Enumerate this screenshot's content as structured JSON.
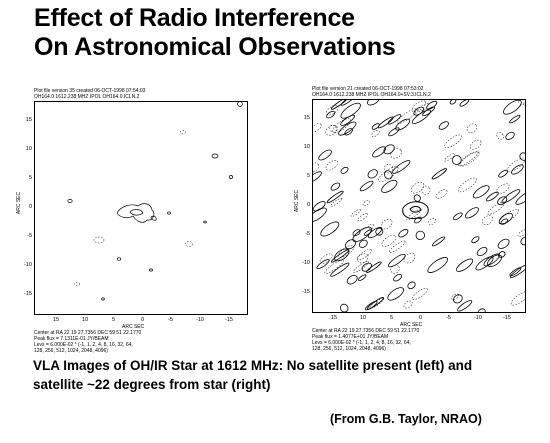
{
  "title": {
    "line1": "Effect of Radio Interference",
    "line2": "On Astronomical Observations"
  },
  "left_plot": {
    "header1": "Plot file version 35 created 06-OCT-1998 07:54:03",
    "header2": "OH164.0 1612.238 MHZ IPOL OH164.0.ICLN.2",
    "y_label": "ARC SEC",
    "x_label": "ARC SEC",
    "y_ticks": [
      "15",
      "10",
      "5",
      "0",
      "-5",
      "-10",
      "-15"
    ],
    "x_ticks": [
      "15",
      "10",
      "5",
      "0",
      "-5",
      "-10",
      "-15"
    ],
    "footer1": "Center at RA 22 19 27.7356  DEC 59 51 22.1770",
    "footer2": "Peak flux = 7.1311E-01 JY/BEAM",
    "footer3": "Levs = 6.000E-02 * (-1, 1, 2, 4, 8, 16, 32, 64,",
    "footer4": "128, 256, 512, 1024, 2048, 4096)"
  },
  "right_plot": {
    "header1": "Plot file version 21 created 06-OCT-1998 07:53:02",
    "header2": "OH164.0 1612.238 MHZ IPOL OH164.0+SV.3.ICLN.2",
    "y_label": "ARC SEC",
    "x_label": "ARC SEC",
    "y_ticks": [
      "15",
      "10",
      "5",
      "0",
      "-5",
      "-10",
      "-15"
    ],
    "x_ticks": [
      "15",
      "10",
      "5",
      "0",
      "-5",
      "-10",
      "-15"
    ],
    "footer1": "Center at RA 22 19 27.7356  DEC 59 51 22.1770",
    "footer2": "Peak flux = 1.4077E+01 JY/BEAM",
    "footer3": "Levs = 6.000E-02 * (-1, 1, 2, 4, 8, 16, 32, 64,",
    "footer4": "128, 256, 512, 1024, 2048, 4096)"
  },
  "caption": {
    "line1": "VLA Images of OH/IR Star at 1612 MHz: No satellite present (left) and",
    "line2": "satellite ~22 degrees from star (right)"
  },
  "credit": "(From G.B. Taylor, NRAO)"
}
